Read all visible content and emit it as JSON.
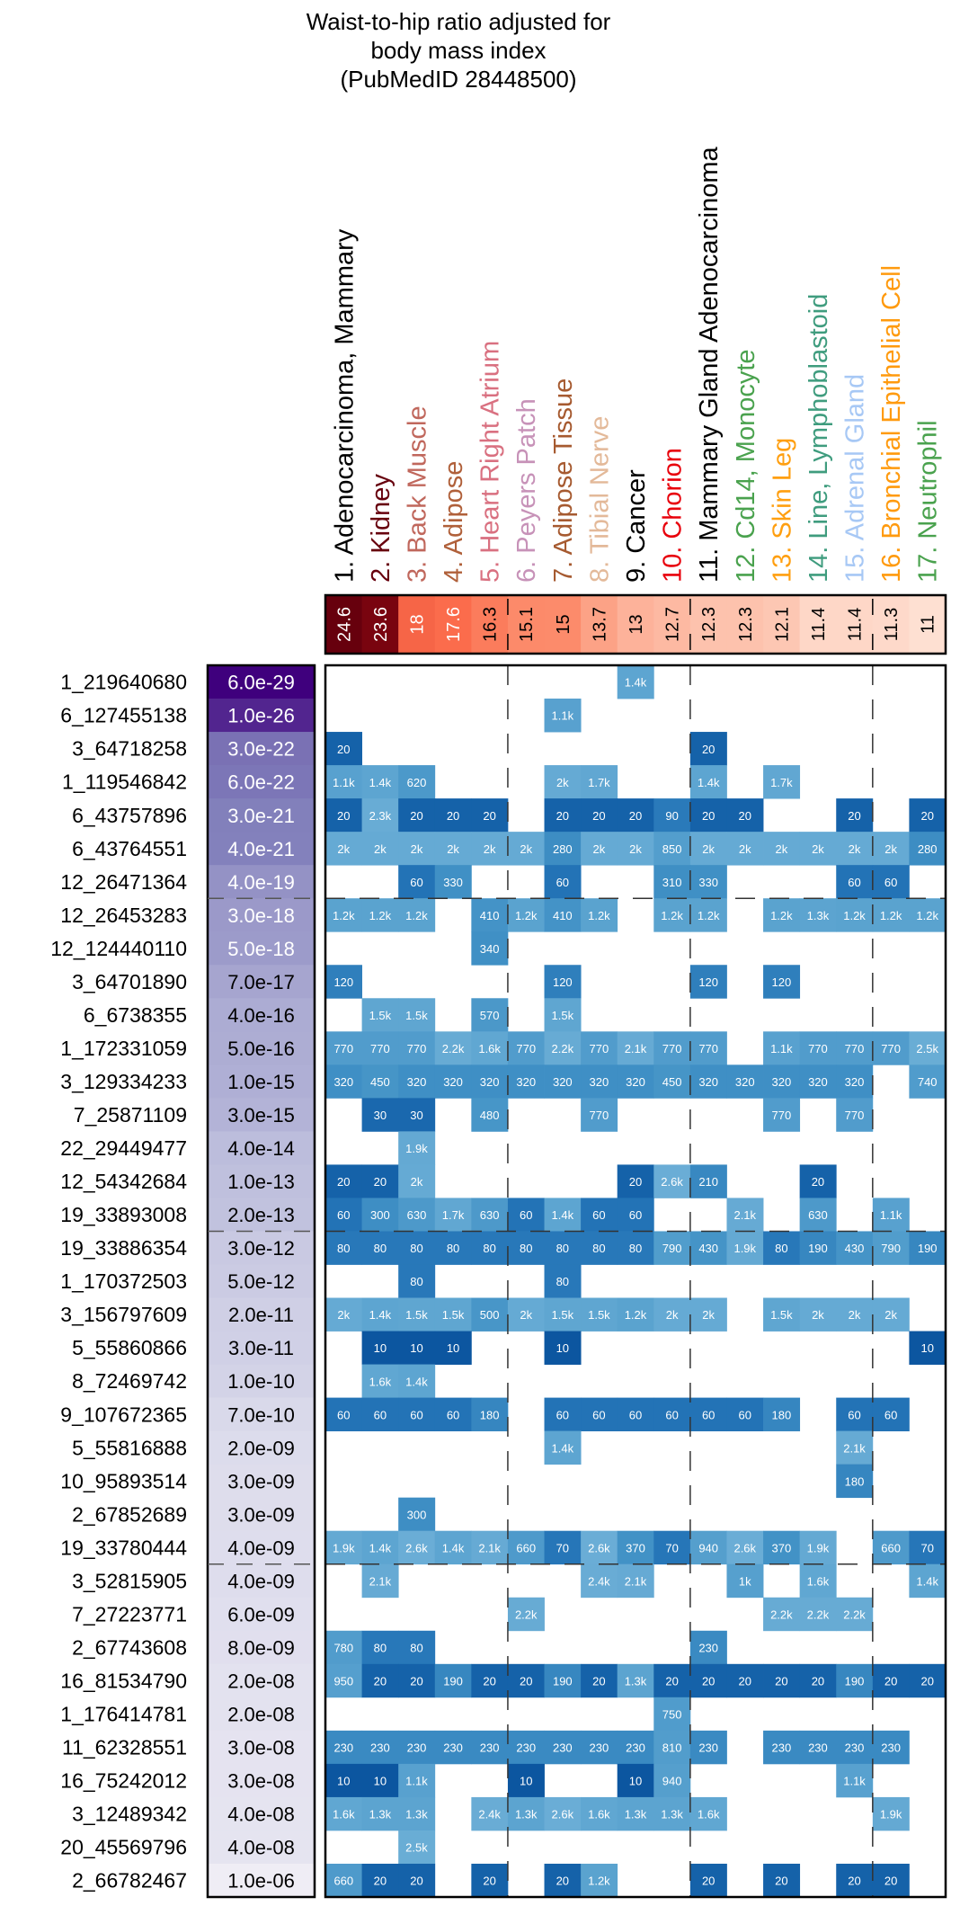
{
  "chart_data": {
    "type": "heatmap",
    "title": [
      "Waist-to-hip ratio adjusted for",
      "body mass index",
      "(PubMedID 28448500)"
    ],
    "columns": [
      {
        "label": "1. Adenocarcinoma, Mammary",
        "color": "#000000",
        "score": "24.6"
      },
      {
        "label": "2. Kidney",
        "color": "#67000d",
        "score": "23.6"
      },
      {
        "label": "3. Back Muscle",
        "color": "#c0675c",
        "score": "18"
      },
      {
        "label": "4. Adipose",
        "color": "#b0603a",
        "score": "17.6"
      },
      {
        "label": "5. Heart Right Atrium",
        "color": "#d97080",
        "score": "16.3"
      },
      {
        "label": "6. Peyers Patch",
        "color": "#c792b8",
        "score": "15.1"
      },
      {
        "label": "7. Adipose Tissue",
        "color": "#a65a30",
        "score": "15"
      },
      {
        "label": "8. Tibial Nerve",
        "color": "#e3b999",
        "score": "13.7"
      },
      {
        "label": "9. Cancer",
        "color": "#000000",
        "score": "13"
      },
      {
        "label": "10. Chorion",
        "color": "#e8000b",
        "score": "12.7"
      },
      {
        "label": "11. Mammary Gland Adenocarcinoma",
        "color": "#000000",
        "score": "12.3"
      },
      {
        "label": "12. Cd14, Monocyte",
        "color": "#4aa24e",
        "score": "12.3"
      },
      {
        "label": "13. Skin Leg",
        "color": "#ff9f10",
        "score": "12.1"
      },
      {
        "label": "14. Line, Lymphoblastoid",
        "color": "#3f9c7e",
        "score": "11.4"
      },
      {
        "label": "15. Adrenal Gland",
        "color": "#a7c8f5",
        "score": "11.4"
      },
      {
        "label": "16. Bronchial Epithelial Cell",
        "color": "#ff9a0e",
        "score": "11.3"
      },
      {
        "label": "17. Neutrophil",
        "color": "#4aa24e",
        "score": "11"
      }
    ],
    "score_range": [
      11,
      24.6
    ],
    "rows": [
      {
        "snp": "1_219640680",
        "pvalue": "6.0e-29",
        "cells": [
          "",
          "",
          "",
          "",
          "",
          "",
          "",
          "",
          "1.4k",
          "",
          "",
          "",
          "",
          "",
          "",
          "",
          ""
        ]
      },
      {
        "snp": "6_127455138",
        "pvalue": "1.0e-26",
        "cells": [
          "",
          "",
          "",
          "",
          "",
          "",
          "1.1k",
          "",
          "",
          "",
          "",
          "",
          "",
          "",
          "",
          "",
          ""
        ]
      },
      {
        "snp": "3_64718258",
        "pvalue": "3.0e-22",
        "cells": [
          "20",
          "",
          "",
          "",
          "",
          "",
          "",
          "",
          "",
          "",
          "20",
          "",
          "",
          "",
          "",
          "",
          ""
        ]
      },
      {
        "snp": "1_119546842",
        "pvalue": "6.0e-22",
        "cells": [
          "1.1k",
          "1.4k",
          "620",
          "",
          "",
          "",
          "2k",
          "1.7k",
          "",
          "",
          "1.4k",
          "",
          "1.7k",
          "",
          "",
          "",
          ""
        ]
      },
      {
        "snp": "6_43757896",
        "pvalue": "3.0e-21",
        "cells": [
          "20",
          "2.3k",
          "20",
          "20",
          "20",
          "",
          "20",
          "20",
          "20",
          "90",
          "20",
          "20",
          "",
          "",
          "20",
          "",
          "20"
        ]
      },
      {
        "snp": "6_43764551",
        "pvalue": "4.0e-21",
        "cells": [
          "2k",
          "2k",
          "2k",
          "2k",
          "2k",
          "2k",
          "280",
          "2k",
          "2k",
          "850",
          "2k",
          "2k",
          "2k",
          "2k",
          "2k",
          "2k",
          "280"
        ]
      },
      {
        "snp": "12_26471364",
        "pvalue": "4.0e-19",
        "cells": [
          "",
          "",
          "60",
          "330",
          "",
          "",
          "60",
          "",
          "",
          "310",
          "330",
          "",
          "",
          "",
          "60",
          "60",
          ""
        ]
      },
      {
        "snp": "12_26453283",
        "pvalue": "3.0e-18",
        "cells": [
          "1.2k",
          "1.2k",
          "1.2k",
          "",
          "410",
          "1.2k",
          "410",
          "1.2k",
          "",
          "1.2k",
          "1.2k",
          "",
          "1.2k",
          "1.3k",
          "1.2k",
          "1.2k",
          "1.2k"
        ]
      },
      {
        "snp": "12_124440110",
        "pvalue": "5.0e-18",
        "cells": [
          "",
          "",
          "",
          "",
          "340",
          "",
          "",
          "",
          "",
          "",
          "",
          "",
          "",
          "",
          "",
          "",
          ""
        ]
      },
      {
        "snp": "3_64701890",
        "pvalue": "7.0e-17",
        "cells": [
          "120",
          "",
          "",
          "",
          "",
          "",
          "120",
          "",
          "",
          "",
          "120",
          "",
          "120",
          "",
          "",
          "",
          ""
        ]
      },
      {
        "snp": "6_6738355",
        "pvalue": "4.0e-16",
        "cells": [
          "",
          "1.5k",
          "1.5k",
          "",
          "570",
          "",
          "1.5k",
          "",
          "",
          "",
          "",
          "",
          "",
          "",
          "",
          "",
          ""
        ]
      },
      {
        "snp": "1_172331059",
        "pvalue": "5.0e-16",
        "cells": [
          "770",
          "770",
          "770",
          "2.2k",
          "1.6k",
          "770",
          "2.2k",
          "770",
          "2.1k",
          "770",
          "770",
          "",
          "1.1k",
          "770",
          "770",
          "770",
          "2.5k"
        ]
      },
      {
        "snp": "3_129334233",
        "pvalue": "1.0e-15",
        "cells": [
          "320",
          "450",
          "320",
          "320",
          "320",
          "320",
          "320",
          "320",
          "320",
          "450",
          "320",
          "320",
          "320",
          "320",
          "320",
          "",
          "740"
        ]
      },
      {
        "snp": "7_25871109",
        "pvalue": "3.0e-15",
        "cells": [
          "",
          "30",
          "30",
          "",
          "480",
          "",
          "",
          "770",
          "",
          "",
          "",
          "",
          "770",
          "",
          "770",
          "",
          ""
        ]
      },
      {
        "snp": "22_29449477",
        "pvalue": "4.0e-14",
        "cells": [
          "",
          "",
          "1.9k",
          "",
          "",
          "",
          "",
          "",
          "",
          "",
          "",
          "",
          "",
          "",
          "",
          "",
          ""
        ]
      },
      {
        "snp": "12_54342684",
        "pvalue": "1.0e-13",
        "cells": [
          "20",
          "20",
          "2k",
          "",
          "",
          "",
          "",
          "",
          "20",
          "2.6k",
          "210",
          "",
          "",
          "20",
          "",
          "",
          ""
        ]
      },
      {
        "snp": "19_33893008",
        "pvalue": "2.0e-13",
        "cells": [
          "60",
          "300",
          "630",
          "1.7k",
          "630",
          "60",
          "1.4k",
          "60",
          "60",
          "",
          "",
          "2.1k",
          "",
          "630",
          "",
          "1.1k",
          ""
        ]
      },
      {
        "snp": "19_33886354",
        "pvalue": "3.0e-12",
        "cells": [
          "80",
          "80",
          "80",
          "80",
          "80",
          "80",
          "80",
          "80",
          "80",
          "790",
          "430",
          "1.9k",
          "80",
          "190",
          "430",
          "790",
          "190"
        ]
      },
      {
        "snp": "1_170372503",
        "pvalue": "5.0e-12",
        "cells": [
          "",
          "",
          "80",
          "",
          "",
          "",
          "80",
          "",
          "",
          "",
          "",
          "",
          "",
          "",
          "",
          "",
          ""
        ]
      },
      {
        "snp": "3_156797609",
        "pvalue": "2.0e-11",
        "cells": [
          "2k",
          "1.4k",
          "1.5k",
          "1.5k",
          "500",
          "2k",
          "1.5k",
          "1.5k",
          "1.2k",
          "2k",
          "2k",
          "",
          "1.5k",
          "2k",
          "2k",
          "2k",
          ""
        ]
      },
      {
        "snp": "5_55860866",
        "pvalue": "3.0e-11",
        "cells": [
          "",
          "10",
          "10",
          "10",
          "",
          "",
          "10",
          "",
          "",
          "",
          "",
          "",
          "",
          "",
          "",
          "",
          "10"
        ]
      },
      {
        "snp": "8_72469742",
        "pvalue": "1.0e-10",
        "cells": [
          "",
          "1.6k",
          "1.4k",
          "",
          "",
          "",
          "",
          "",
          "",
          "",
          "",
          "",
          "",
          "",
          "",
          "",
          ""
        ]
      },
      {
        "snp": "9_107672365",
        "pvalue": "7.0e-10",
        "cells": [
          "60",
          "60",
          "60",
          "60",
          "180",
          "",
          "60",
          "60",
          "60",
          "60",
          "60",
          "60",
          "180",
          "",
          "60",
          "60",
          ""
        ]
      },
      {
        "snp": "5_55816888",
        "pvalue": "2.0e-09",
        "cells": [
          "",
          "",
          "",
          "",
          "",
          "",
          "1.4k",
          "",
          "",
          "",
          "",
          "",
          "",
          "",
          "2.1k",
          "",
          ""
        ]
      },
      {
        "snp": "10_95893514",
        "pvalue": "3.0e-09",
        "cells": [
          "",
          "",
          "",
          "",
          "",
          "",
          "",
          "",
          "",
          "",
          "",
          "",
          "",
          "",
          "180",
          "",
          ""
        ]
      },
      {
        "snp": "2_67852689",
        "pvalue": "3.0e-09",
        "cells": [
          "",
          "",
          "300",
          "",
          "",
          "",
          "",
          "",
          "",
          "",
          "",
          "",
          "",
          "",
          "",
          "",
          ""
        ]
      },
      {
        "snp": "19_33780444",
        "pvalue": "4.0e-09",
        "cells": [
          "1.9k",
          "1.4k",
          "2.6k",
          "1.4k",
          "2.1k",
          "660",
          "70",
          "2.6k",
          "370",
          "70",
          "940",
          "2.6k",
          "370",
          "1.9k",
          "",
          "660",
          "70"
        ]
      },
      {
        "snp": "3_52815905",
        "pvalue": "4.0e-09",
        "cells": [
          "",
          "2.1k",
          "",
          "",
          "",
          "",
          "",
          "2.4k",
          "2.1k",
          "",
          "",
          "1k",
          "",
          "1.6k",
          "",
          "",
          "1.4k"
        ]
      },
      {
        "snp": "7_27223771",
        "pvalue": "6.0e-09",
        "cells": [
          "",
          "",
          "",
          "",
          "",
          "2.2k",
          "",
          "",
          "",
          "",
          "",
          "",
          "2.2k",
          "2.2k",
          "2.2k",
          "",
          ""
        ]
      },
      {
        "snp": "2_67743608",
        "pvalue": "8.0e-09",
        "cells": [
          "780",
          "80",
          "80",
          "",
          "",
          "",
          "",
          "",
          "",
          "",
          "230",
          "",
          "",
          "",
          "",
          "",
          ""
        ]
      },
      {
        "snp": "16_81534790",
        "pvalue": "2.0e-08",
        "cells": [
          "950",
          "20",
          "20",
          "190",
          "20",
          "20",
          "190",
          "20",
          "1.3k",
          "20",
          "20",
          "20",
          "20",
          "20",
          "190",
          "20",
          "20"
        ]
      },
      {
        "snp": "1_176414781",
        "pvalue": "2.0e-08",
        "cells": [
          "",
          "",
          "",
          "",
          "",
          "",
          "",
          "",
          "",
          "750",
          "",
          "",
          "",
          "",
          "",
          "",
          ""
        ]
      },
      {
        "snp": "11_62328551",
        "pvalue": "3.0e-08",
        "cells": [
          "230",
          "230",
          "230",
          "230",
          "230",
          "230",
          "230",
          "230",
          "230",
          "810",
          "230",
          "",
          "230",
          "230",
          "230",
          "230",
          ""
        ]
      },
      {
        "snp": "16_75242012",
        "pvalue": "3.0e-08",
        "cells": [
          "10",
          "10",
          "1.1k",
          "",
          "",
          "10",
          "",
          "",
          "10",
          "940",
          "",
          "",
          "",
          "",
          "1.1k",
          "",
          ""
        ]
      },
      {
        "snp": "3_12489342",
        "pvalue": "4.0e-08",
        "cells": [
          "1.6k",
          "1.3k",
          "1.3k",
          "",
          "2.4k",
          "1.3k",
          "2.6k",
          "1.6k",
          "1.3k",
          "1.3k",
          "1.6k",
          "",
          "",
          "",
          "",
          "1.9k",
          ""
        ]
      },
      {
        "snp": "20_45569796",
        "pvalue": "4.0e-08",
        "cells": [
          "",
          "",
          "2.5k",
          "",
          "",
          "",
          "",
          "",
          "",
          "",
          "",
          "",
          "",
          "",
          "",
          "",
          ""
        ]
      },
      {
        "snp": "2_66782467",
        "pvalue": "1.0e-06",
        "cells": [
          "660",
          "20",
          "20",
          "",
          "20",
          "",
          "20",
          "1.2k",
          "",
          "",
          "20",
          "",
          "20",
          "",
          "20",
          "20",
          ""
        ]
      }
    ],
    "column_group_breaks_after": [
      5,
      10,
      15
    ],
    "row_group_breaks_after": [
      7,
      17,
      27
    ],
    "cell_colorscale": [
      "#08306b",
      "#08519c",
      "#2171b5",
      "#4292c6",
      "#6baed6"
    ],
    "score_colorscale": [
      "#fee0d2",
      "#fc9272",
      "#fb6a4a",
      "#a50f15",
      "#67000d"
    ],
    "pvalue_colorscale": [
      "#efedf5",
      "#bcbddc",
      "#807dba",
      "#3f007d"
    ]
  }
}
